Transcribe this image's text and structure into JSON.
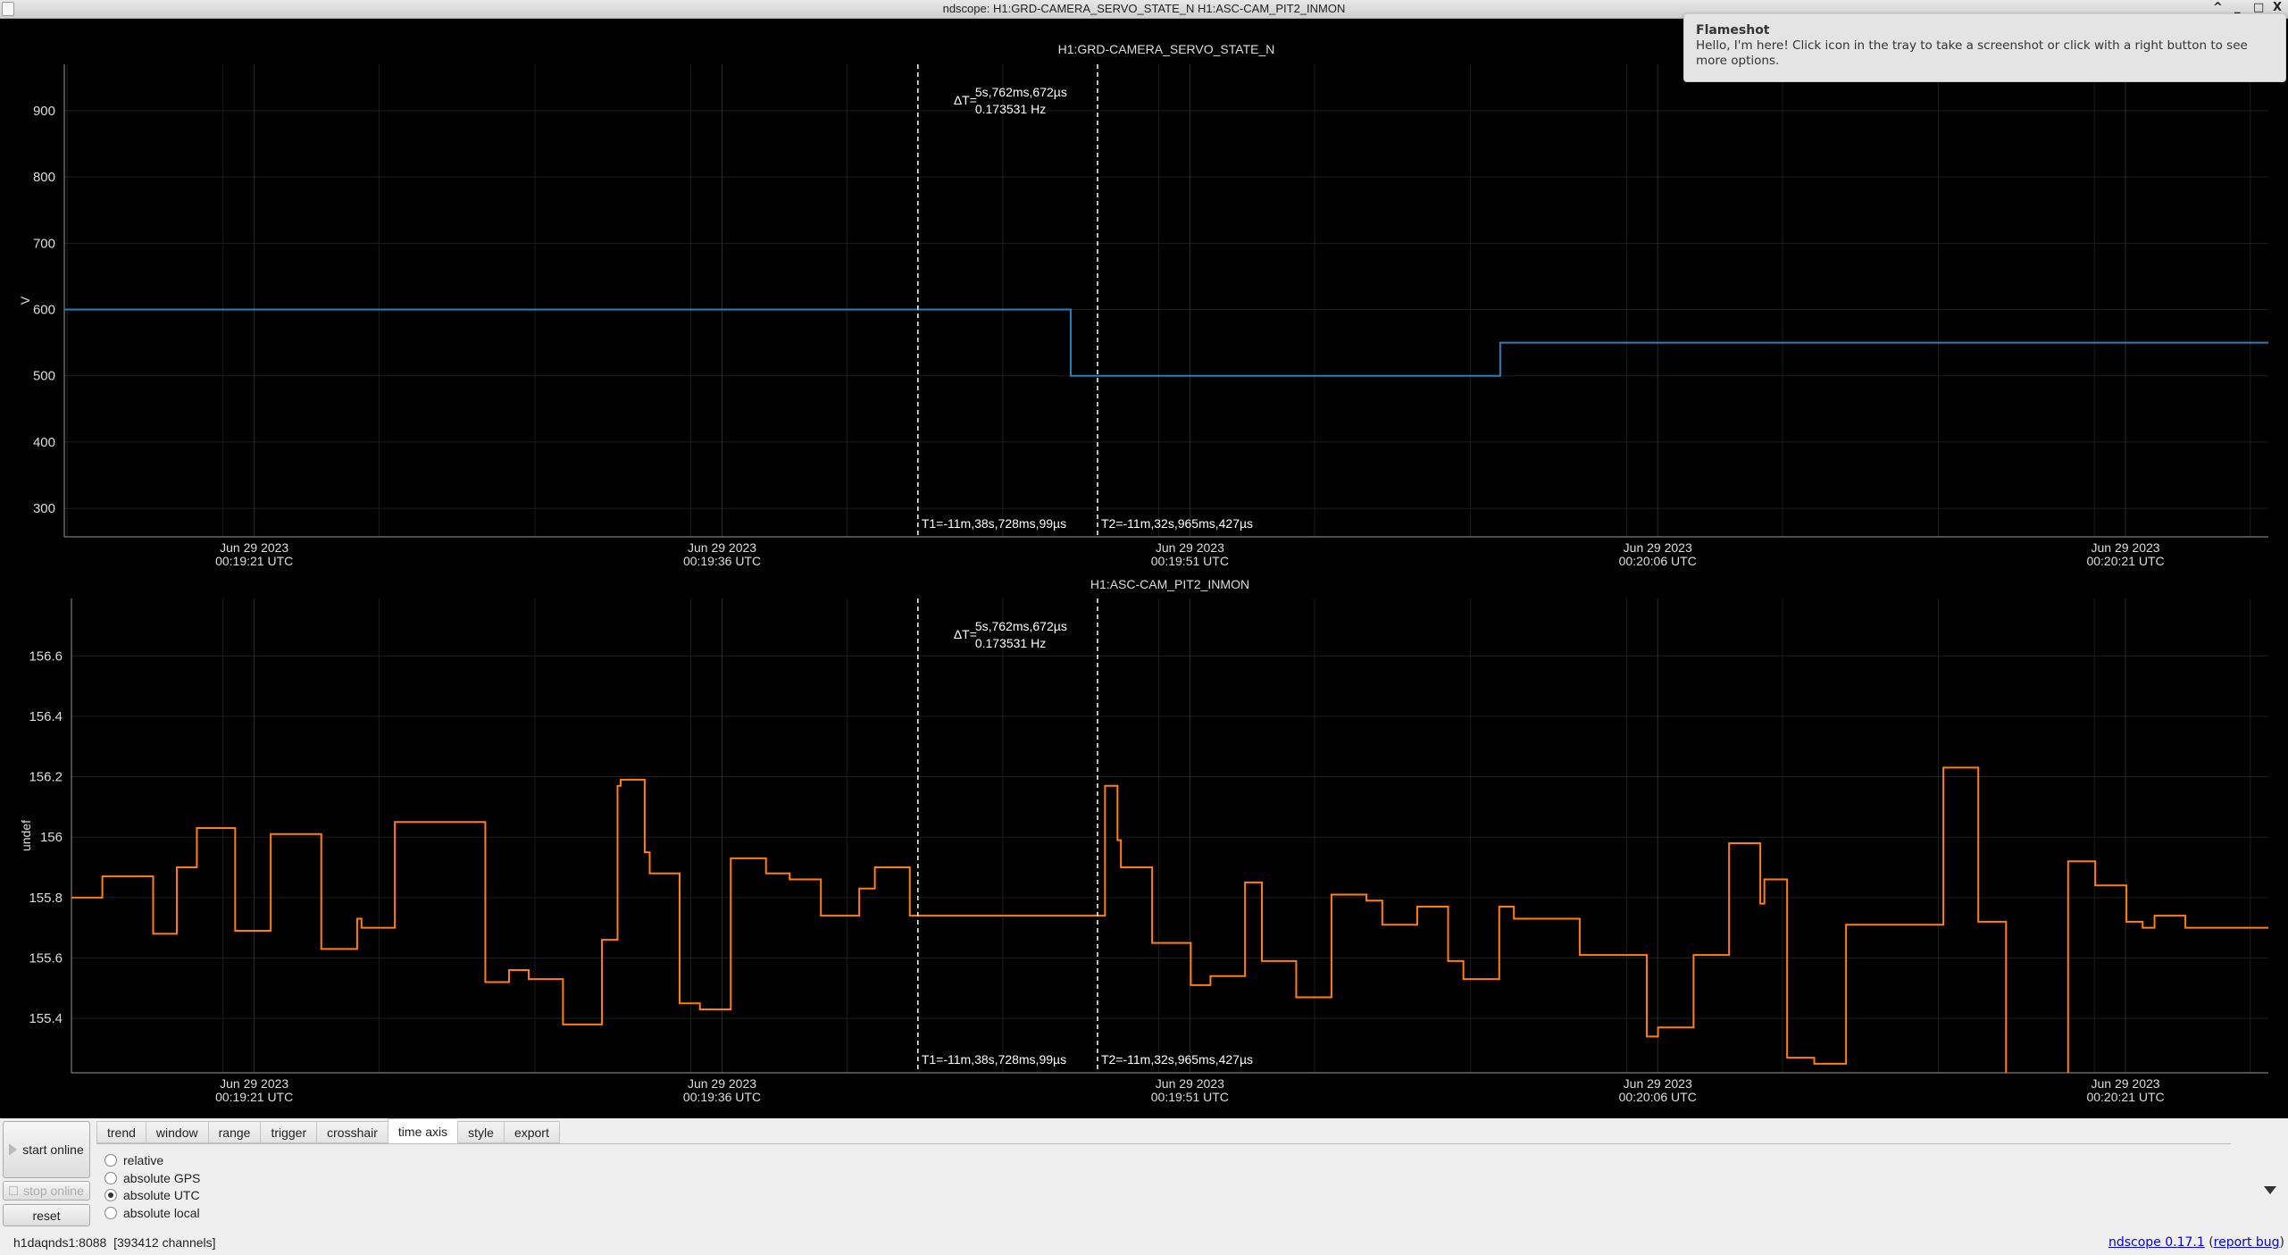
{
  "window": {
    "title": "ndscope: H1:GRD-CAMERA_SERVO_STATE_N H1:ASC-CAM_PIT2_INMON",
    "buttons": {
      "shade": "^",
      "minimize": "_",
      "maximize": "□",
      "close": "X"
    }
  },
  "notification": {
    "title": "Flameshot",
    "message": "Hello, I'm here! Click icon in the tray to take a screenshot or click with a right button to see more options."
  },
  "colors": {
    "series1": "#2c7fb8",
    "series2": "#ff7f0e",
    "background": "#000000",
    "cursor": "#ffffff"
  },
  "chart_data": [
    {
      "type": "line",
      "title": "H1:GRD-CAMERA_SERVO_STATE_N",
      "ylabel": "V",
      "xlim": [
        "00:19:14.91",
        "00:20:25.58"
      ],
      "ylim": [
        257,
        970
      ],
      "yticks": [
        300,
        400,
        500,
        600,
        700,
        800,
        900
      ],
      "xticks": [
        {
          "time": "00:19:21",
          "date": "Jun 29 2023",
          "label": "00:19:21 UTC"
        },
        {
          "time": "00:19:36",
          "date": "Jun 29 2023",
          "label": "00:19:36 UTC"
        },
        {
          "time": "00:19:51",
          "date": "Jun 29 2023",
          "label": "00:19:51 UTC"
        },
        {
          "time": "00:20:06",
          "date": "Jun 29 2023",
          "label": "00:20:06 UTC"
        },
        {
          "time": "00:20:21",
          "date": "Jun 29 2023",
          "label": "00:20:21 UTC"
        }
      ],
      "grid": true,
      "step": true,
      "series": [
        {
          "color": "#2c7fb8",
          "points": [
            [
              "00:19:14.91",
              600
            ],
            [
              "00:19:47.18",
              500
            ],
            [
              "00:20:00.95",
              550
            ],
            [
              "00:20:25.58",
              550
            ]
          ]
        }
      ],
      "cursors": {
        "t1": "00:19:42.28",
        "t2": "00:19:48.04",
        "t1_label": "T1=-11m,38s,728ms,99µs",
        "t2_label": "T2=-11m,32s,965ms,427µs",
        "delta_prefix": "ΔT=",
        "delta": "5s,762ms,672µs",
        "freq": "0.173531 Hz"
      }
    },
    {
      "type": "line",
      "title": "H1:ASC-CAM_PIT2_INMON",
      "ylabel": "undef",
      "xlim": [
        "00:19:15.14",
        "00:20:25.58"
      ],
      "ylim": [
        155.22,
        156.79
      ],
      "yticks": [
        155.4,
        155.6,
        155.8,
        156,
        156.2,
        156.4,
        156.6
      ],
      "xticks": [
        {
          "time": "00:19:21",
          "date": "Jun 29 2023",
          "label": "00:19:21 UTC"
        },
        {
          "time": "00:19:36",
          "date": "Jun 29 2023",
          "label": "00:19:36 UTC"
        },
        {
          "time": "00:19:51",
          "date": "Jun 29 2023",
          "label": "00:19:51 UTC"
        },
        {
          "time": "00:20:06",
          "date": "Jun 29 2023",
          "label": "00:20:06 UTC"
        },
        {
          "time": "00:20:21",
          "date": "Jun 29 2023",
          "label": "00:20:21 UTC"
        }
      ],
      "grid": true,
      "step": true,
      "series": [
        {
          "color": "#ff7f0e",
          "points": [
            [
              "00:19:15.14",
              155.8
            ],
            [
              "00:19:16.13",
              155.87
            ],
            [
              "00:19:17.76",
              155.68
            ],
            [
              "00:19:18.52",
              155.9
            ],
            [
              "00:19:19.16",
              156.03
            ],
            [
              "00:19:20.39",
              155.69
            ],
            [
              "00:19:21.53",
              156.01
            ],
            [
              "00:19:23.15",
              155.63
            ],
            [
              "00:19:24.30",
              155.73
            ],
            [
              "00:19:24.44",
              155.7
            ],
            [
              "00:19:25.51",
              156.05
            ],
            [
              "00:19:28.41",
              155.52
            ],
            [
              "00:19:29.17",
              155.56
            ],
            [
              "00:19:29.80",
              155.53
            ],
            [
              "00:19:30.90",
              155.38
            ],
            [
              "00:19:32.15",
              155.66
            ],
            [
              "00:19:32.65",
              156.17
            ],
            [
              "00:19:32.75",
              156.19
            ],
            [
              "00:19:33.52",
              155.95
            ],
            [
              "00:19:33.68",
              155.88
            ],
            [
              "00:19:34.64",
              155.45
            ],
            [
              "00:19:35.29",
              155.43
            ],
            [
              "00:19:36.28",
              155.93
            ],
            [
              "00:19:37.41",
              155.88
            ],
            [
              "00:19:38.17",
              155.86
            ],
            [
              "00:19:39.17",
              155.74
            ],
            [
              "00:19:40.40",
              155.83
            ],
            [
              "00:19:40.90",
              155.9
            ],
            [
              "00:19:42.02",
              155.74
            ],
            [
              "00:19:48.28",
              156.17
            ],
            [
              "00:19:48.68",
              155.99
            ],
            [
              "00:19:48.79",
              155.9
            ],
            [
              "00:19:49.79",
              155.65
            ],
            [
              "00:19:51.03",
              155.51
            ],
            [
              "00:19:51.66",
              155.54
            ],
            [
              "00:19:52.77",
              155.85
            ],
            [
              "00:19:53.31",
              155.59
            ],
            [
              "00:19:54.41",
              155.47
            ],
            [
              "00:19:55.54",
              155.81
            ],
            [
              "00:19:56.66",
              155.79
            ],
            [
              "00:19:57.17",
              155.71
            ],
            [
              "00:19:58.29",
              155.77
            ],
            [
              "00:19:59.28",
              155.59
            ],
            [
              "00:19:59.77",
              155.53
            ],
            [
              "00:20:00.92",
              155.77
            ],
            [
              "00:20:01.39",
              155.73
            ],
            [
              "00:20:03.50",
              155.61
            ],
            [
              "00:20:05.65",
              155.34
            ],
            [
              "00:20:06.01",
              155.37
            ],
            [
              "00:20:07.15",
              155.61
            ],
            [
              "00:20:08.29",
              155.98
            ],
            [
              "00:20:09.29",
              155.78
            ],
            [
              "00:20:09.42",
              155.86
            ],
            [
              "00:20:10.15",
              155.27
            ],
            [
              "00:20:11.02",
              155.25
            ],
            [
              "00:20:12.04",
              155.71
            ],
            [
              "00:20:15.16",
              156.23
            ],
            [
              "00:20:16.28",
              155.72
            ],
            [
              "00:20:17.17",
              155.1
            ],
            [
              "00:20:19.16",
              155.92
            ],
            [
              "00:20:20.03",
              155.84
            ],
            [
              "00:20:21.03",
              155.72
            ],
            [
              "00:20:21.55",
              155.7
            ],
            [
              "00:20:21.93",
              155.74
            ],
            [
              "00:20:22.92",
              155.7
            ],
            [
              "00:20:25.58",
              155.7
            ]
          ]
        }
      ],
      "cursors": {
        "t1": "00:19:42.28",
        "t2": "00:19:48.04",
        "t1_label": "T1=-11m,38s,728ms,99µs",
        "t2_label": "T2=-11m,32s,965ms,427µs",
        "delta_prefix": "ΔT=",
        "delta": "5s,762ms,672µs",
        "freq": "0.173531 Hz"
      }
    }
  ],
  "controls": {
    "start_online": "start online",
    "stop_online": "stop online",
    "reset": "reset",
    "tabs": [
      {
        "label": "trend",
        "active": false
      },
      {
        "label": "window",
        "active": false
      },
      {
        "label": "range",
        "active": false
      },
      {
        "label": "trigger",
        "active": false
      },
      {
        "label": "crosshair",
        "active": false
      },
      {
        "label": "time axis",
        "active": true
      },
      {
        "label": "style",
        "active": false
      },
      {
        "label": "export",
        "active": false
      }
    ],
    "time_axis_options": [
      {
        "label": "relative",
        "selected": false
      },
      {
        "label": "absolute GPS",
        "selected": false
      },
      {
        "label": "absolute UTC",
        "selected": true
      },
      {
        "label": "absolute local",
        "selected": false
      }
    ]
  },
  "status": {
    "server": "h1daqnds1:8088",
    "channels": "[393412 channels]",
    "version_link": "ndscope 0.17.1",
    "report_bug_link": "report bug"
  }
}
